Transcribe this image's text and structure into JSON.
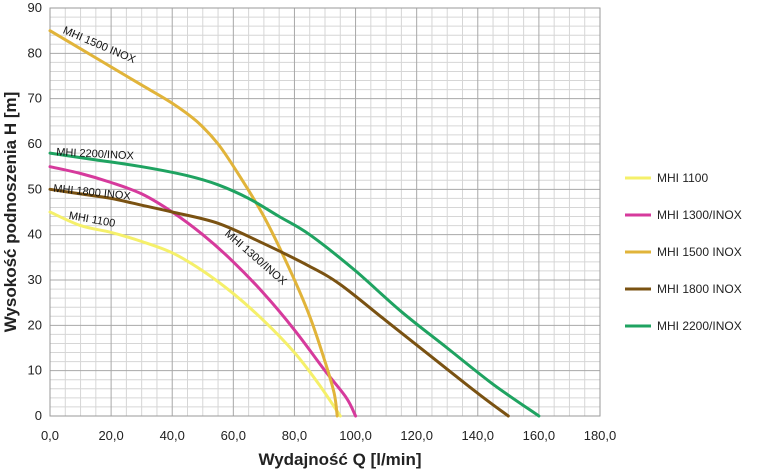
{
  "chart_data": {
    "type": "line",
    "xlabel": "Wydajność Q [l/min]",
    "ylabel": "Wysokość podnoszenia H [m]",
    "xlim": [
      0,
      180
    ],
    "ylim": [
      0,
      90
    ],
    "x_ticks": [
      "0,0",
      "20,0",
      "40,0",
      "60,0",
      "80,0",
      "100,0",
      "120,0",
      "140,0",
      "160,0",
      "180,0"
    ],
    "y_ticks": [
      "0",
      "10",
      "20",
      "30",
      "40",
      "50",
      "60",
      "70",
      "80",
      "90"
    ],
    "grid": true,
    "legend_position": "right",
    "series": [
      {
        "name": "MHI 1100",
        "color": "#f5f06a",
        "curve_label": "MHI 1100",
        "points": [
          [
            0,
            45
          ],
          [
            10,
            42
          ],
          [
            20,
            40.5
          ],
          [
            30,
            38.5
          ],
          [
            40,
            36
          ],
          [
            50,
            32
          ],
          [
            60,
            27
          ],
          [
            70,
            21
          ],
          [
            80,
            14
          ],
          [
            88,
            7
          ],
          [
            95,
            0
          ]
        ]
      },
      {
        "name": "MHI 1300/INOX",
        "color": "#d63a9c",
        "curve_label": "MHI 1300/INOX",
        "points": [
          [
            0,
            55
          ],
          [
            10,
            53.5
          ],
          [
            20,
            51.5
          ],
          [
            30,
            49
          ],
          [
            40,
            45
          ],
          [
            50,
            40
          ],
          [
            60,
            34
          ],
          [
            70,
            27
          ],
          [
            80,
            19
          ],
          [
            90,
            10
          ],
          [
            97,
            4
          ],
          [
            100,
            0
          ]
        ]
      },
      {
        "name": "MHI 1500 INOX",
        "color": "#e1b43a",
        "curve_label": "MHI 1500 INOX",
        "points": [
          [
            0,
            85
          ],
          [
            10,
            81
          ],
          [
            20,
            77
          ],
          [
            30,
            73
          ],
          [
            40,
            69
          ],
          [
            48,
            65
          ],
          [
            55,
            60
          ],
          [
            62,
            53
          ],
          [
            70,
            44
          ],
          [
            78,
            33
          ],
          [
            85,
            22
          ],
          [
            90,
            12
          ],
          [
            93,
            5
          ],
          [
            94,
            0
          ]
        ]
      },
      {
        "name": "MHI 1800 INOX",
        "color": "#7a5212",
        "curve_label": "MHI 1800 INOX",
        "points": [
          [
            0,
            50
          ],
          [
            10,
            49
          ],
          [
            20,
            48
          ],
          [
            30,
            46.5
          ],
          [
            40,
            45
          ],
          [
            55,
            42.5
          ],
          [
            70,
            38
          ],
          [
            85,
            33
          ],
          [
            95,
            29
          ],
          [
            110,
            21
          ],
          [
            125,
            13
          ],
          [
            140,
            5
          ],
          [
            150,
            0
          ]
        ]
      },
      {
        "name": "MHI 2200/INOX",
        "color": "#1fa361",
        "curve_label": "MHI 2200/INOX",
        "points": [
          [
            0,
            58
          ],
          [
            15,
            56.5
          ],
          [
            30,
            55
          ],
          [
            45,
            53
          ],
          [
            55,
            51
          ],
          [
            65,
            48
          ],
          [
            75,
            44
          ],
          [
            85,
            40
          ],
          [
            100,
            32
          ],
          [
            115,
            23
          ],
          [
            130,
            15
          ],
          [
            145,
            7
          ],
          [
            160,
            0
          ]
        ]
      }
    ]
  }
}
